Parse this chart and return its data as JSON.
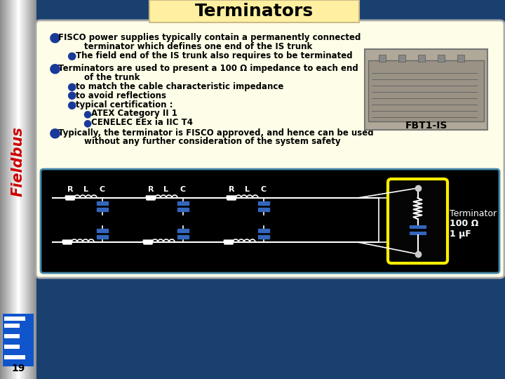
{
  "title": "Terminators",
  "sidebar_text": "Fieldbus",
  "background_color": "#1a4070",
  "content_bg": "#fefee8",
  "bottom_bg": "#000000",
  "title_bg": "#fef0a0",
  "title_color": "#000000",
  "title_fontsize": 18,
  "sidebar_text_color": "#cc0000",
  "bullet_color": "#1a3a9a",
  "fbt_label": "FBT1-IS",
  "terminator_label_1": "Terminator",
  "terminator_label_2": "100 Ω",
  "terminator_label_3": "1 μF",
  "page_number": "19",
  "rlc_labels": [
    "R",
    "L",
    "C",
    "R",
    "L",
    "C",
    "R",
    "L",
    "C"
  ]
}
